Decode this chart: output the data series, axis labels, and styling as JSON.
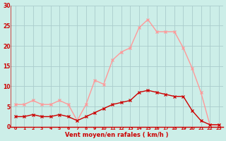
{
  "x": [
    0,
    1,
    2,
    3,
    4,
    5,
    6,
    7,
    8,
    9,
    10,
    11,
    12,
    13,
    14,
    15,
    16,
    17,
    18,
    19,
    20,
    21,
    22,
    23
  ],
  "avg_wind": [
    2.5,
    2.5,
    3.0,
    2.5,
    2.5,
    3.0,
    2.5,
    1.5,
    2.5,
    3.5,
    4.5,
    5.5,
    6.0,
    6.5,
    8.5,
    9.0,
    8.5,
    8.0,
    7.5,
    7.5,
    4.0,
    1.5,
    0.5,
    0.5
  ],
  "gust_wind": [
    5.5,
    5.5,
    6.5,
    5.5,
    5.5,
    6.5,
    5.5,
    1.5,
    5.5,
    11.5,
    10.5,
    16.5,
    18.5,
    19.5,
    24.5,
    26.5,
    23.5,
    23.5,
    23.5,
    19.5,
    14.5,
    8.5,
    0.5,
    0.5
  ],
  "avg_color": "#cc0000",
  "gust_color": "#ff9999",
  "bg_color": "#cceee8",
  "grid_color": "#aacccc",
  "axis_line_color": "#cc0000",
  "xlabel": "Vent moyen/en rafales ( km/h )",
  "xlabel_color": "#cc0000",
  "tick_color": "#cc0000",
  "ylim": [
    0,
    30
  ],
  "xlim": [
    -0.5,
    23.5
  ],
  "yticks": [
    0,
    5,
    10,
    15,
    20,
    25,
    30
  ],
  "xticks": [
    0,
    1,
    2,
    3,
    4,
    5,
    6,
    7,
    8,
    9,
    10,
    11,
    12,
    13,
    14,
    15,
    16,
    17,
    18,
    19,
    20,
    21,
    22,
    23
  ]
}
